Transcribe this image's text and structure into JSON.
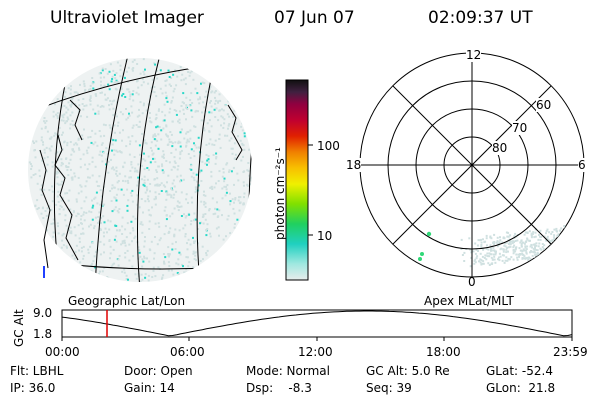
{
  "header": {
    "title": "Ultraviolet Imager",
    "date": "07 Jun 07",
    "time": "02:09:37 UT"
  },
  "left_map": {
    "caption": "Geographic Lat/Lon"
  },
  "colorbar": {
    "axis_label": "photon cm⁻²s⁻¹",
    "ticks": [
      "100",
      "10"
    ]
  },
  "polar_plot": {
    "caption": "Apex MLat/MLT",
    "mlt_labels": {
      "top": "12",
      "left": "18",
      "right": "6",
      "bottom": "0"
    },
    "lat_labels": [
      "60",
      "70",
      "80"
    ]
  },
  "altitude_strip": {
    "axis_label": "GC Alt",
    "y_ticks": [
      "9.0",
      "1.8"
    ],
    "x_ticks": [
      "00:00",
      "06:00",
      "12:00",
      "18:00",
      "23:59"
    ]
  },
  "info_rows": [
    [
      "Flt: LBHL",
      "Door: Open",
      "Mode: Normal",
      "GC Alt: 5.0 Re",
      "GLat: -52.4"
    ],
    [
      "IP: 36.0",
      "Gain: 14",
      "Dsp:    -8.3",
      "Seq: 39",
      "GLon:  21.8"
    ]
  ],
  "colors": {
    "emission_dots": "#cfe0e0",
    "bright_dots": "#2ad8c8",
    "time_marker": "#e00000"
  }
}
